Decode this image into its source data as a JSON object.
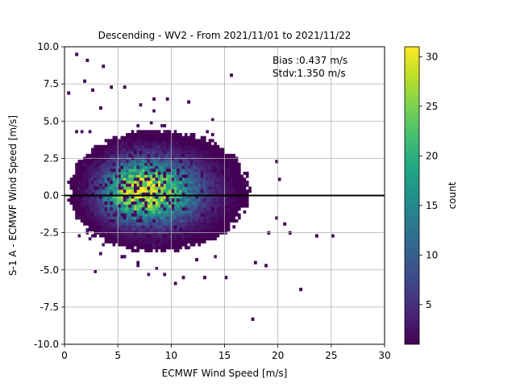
{
  "chart_data": {
    "type": "heatmap",
    "title": "Descending - WV2 - From 2021/11/01 to 2021/11/22",
    "xlabel": "ECMWF Wind Speed [m/s]",
    "ylabel": "S-1 A - ECMWF Wind Speed [m/s]",
    "xlim": [
      0,
      30
    ],
    "ylim": [
      -10,
      10
    ],
    "xticks": [
      0,
      5,
      10,
      15,
      20,
      25,
      30
    ],
    "yticks": [
      -10.0,
      -7.5,
      -5.0,
      -2.5,
      0.0,
      2.5,
      5.0,
      7.5,
      10.0
    ],
    "grid": true,
    "reference_line_y": 0,
    "bin_size_x": 0.25,
    "bin_size_y": 0.2,
    "annotations": {
      "bias": "Bias :0.437 m/s",
      "stdv": "Stdv:1.350 m/s"
    },
    "colorbar": {
      "label": "count",
      "colormap": "viridis",
      "min": 1,
      "max": 31,
      "ticks": [
        5,
        10,
        15,
        20,
        25,
        30
      ]
    },
    "density_core": {
      "x_center": 7.0,
      "y_center": 0.3,
      "peak_count": 30
    },
    "outlier_bins": [
      {
        "x": 1.1,
        "y": 9.5,
        "count": 1
      },
      {
        "x": 2.2,
        "y": 9.2,
        "count": 1
      },
      {
        "x": 3.6,
        "y": 8.7,
        "count": 1
      },
      {
        "x": 1.8,
        "y": 7.7,
        "count": 1
      },
      {
        "x": 2.7,
        "y": 7.1,
        "count": 1
      },
      {
        "x": 15.5,
        "y": 8.1,
        "count": 1
      },
      {
        "x": 11.6,
        "y": 6.2,
        "count": 1
      },
      {
        "x": 9.5,
        "y": 6.4,
        "count": 1
      },
      {
        "x": 8.4,
        "y": 6.4,
        "count": 1
      },
      {
        "x": 4.3,
        "y": 7.2,
        "count": 1
      },
      {
        "x": 5.5,
        "y": 7.3,
        "count": 1
      },
      {
        "x": 19.9,
        "y": 2.2,
        "count": 1
      },
      {
        "x": 20.0,
        "y": 1.1,
        "count": 1
      },
      {
        "x": 19.8,
        "y": -1.5,
        "count": 1
      },
      {
        "x": 20.5,
        "y": -2.0,
        "count": 1
      },
      {
        "x": 21.2,
        "y": -2.5,
        "count": 1
      },
      {
        "x": 23.7,
        "y": -2.7,
        "count": 1
      },
      {
        "x": 25.0,
        "y": -2.7,
        "count": 1
      },
      {
        "x": 19.0,
        "y": -2.5,
        "count": 1
      },
      {
        "x": 18.8,
        "y": -4.8,
        "count": 1
      },
      {
        "x": 17.8,
        "y": -4.5,
        "count": 1
      },
      {
        "x": 22.0,
        "y": -6.3,
        "count": 1
      },
      {
        "x": 17.5,
        "y": -8.4,
        "count": 1
      },
      {
        "x": 15.1,
        "y": -5.5,
        "count": 1
      },
      {
        "x": 13.2,
        "y": -5.6,
        "count": 1
      },
      {
        "x": 11.0,
        "y": -5.6,
        "count": 1
      },
      {
        "x": 10.3,
        "y": -5.9,
        "count": 1
      },
      {
        "x": 6.8,
        "y": -4.6,
        "count": 1
      },
      {
        "x": 5.4,
        "y": -4.2,
        "count": 1
      },
      {
        "x": 9.8,
        "y": -3.6,
        "count": 1
      },
      {
        "x": 12.3,
        "y": -4.4,
        "count": 1
      },
      {
        "x": 0.3,
        "y": 6.8,
        "count": 1
      },
      {
        "x": 3.3,
        "y": 5.9,
        "count": 1
      }
    ]
  }
}
